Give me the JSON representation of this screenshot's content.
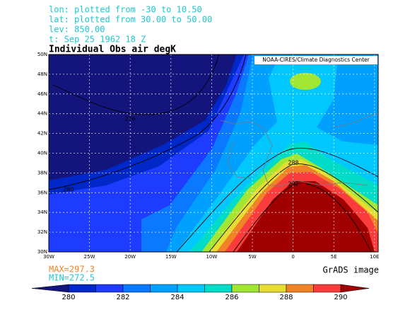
{
  "header": {
    "lines": [
      "lon: plotted from -30 to 10.50",
      "lat: plotted from 30.00 to 50.00",
      "lev: 850.00",
      "t: Sep 25 1962 18 Z"
    ]
  },
  "title": "Individual Obs air degK",
  "credit": "NOAA-CIRES/Climate Diagnostics Center",
  "map": {
    "lat_labels": [
      "30N",
      "32N",
      "34N",
      "36N",
      "38N",
      "40N",
      "42N",
      "44N",
      "46N",
      "48N",
      "50N"
    ],
    "lon_labels": [
      "30W",
      "25W",
      "20W",
      "15W",
      "10W",
      "5W",
      "0",
      "5E",
      "10E"
    ],
    "contour_labels": [
      "276",
      "280",
      "288",
      "292"
    ]
  },
  "max": "MAX=297.3",
  "min": "MIN=272.5",
  "footer": "GrADS image",
  "colorbar": {
    "labels": [
      280,
      282,
      284,
      286,
      288,
      290
    ],
    "colors": [
      "#14147d",
      "#0028c8",
      "#1e3cff",
      "#0a78ff",
      "#00a0ff",
      "#00c8ff",
      "#00dcc8",
      "#a0e632",
      "#e6dc32",
      "#f08228",
      "#fa3c3c",
      "#a00000"
    ]
  }
}
